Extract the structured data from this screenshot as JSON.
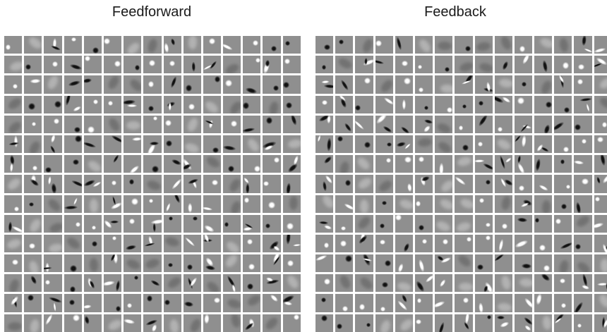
{
  "panels": [
    {
      "id": "left",
      "title": "Feedforward",
      "rows": 15,
      "cols": 15,
      "background": "#8f8f8f",
      "seed": 11
    },
    {
      "id": "right",
      "title": "Feedback",
      "rows": 15,
      "cols": 15,
      "background": "#8f8f8f",
      "seed": 29
    }
  ],
  "colors": {
    "page_background": "#ffffff",
    "tile_gray": "#8f8f8f",
    "light_feature": "#ffffff",
    "dark_feature": "#111111"
  }
}
